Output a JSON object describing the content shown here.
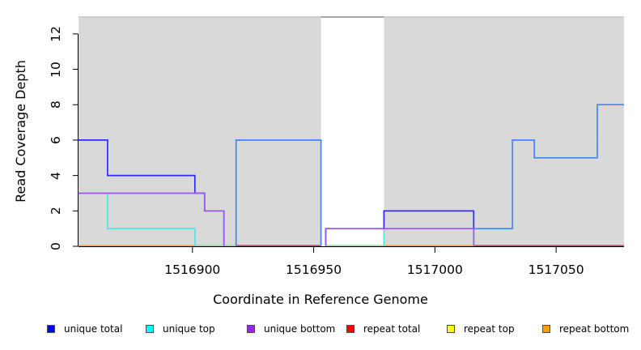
{
  "figure": {
    "x_axis_title": "Coordinate in Reference Genome",
    "y_axis_title": "Read Coverage Depth"
  },
  "chart_data": {
    "type": "line",
    "subtype": "step-coverage-plot",
    "title": "",
    "xlabel": "Coordinate in Reference Genome",
    "ylabel": "Read Coverage Depth",
    "xlim": [
      1516853,
      1517078
    ],
    "ylim": [
      0,
      13
    ],
    "xticks": [
      1516900,
      1516950,
      1517000,
      1517050
    ],
    "yticks": [
      0,
      2,
      4,
      6,
      8,
      10,
      12
    ],
    "grid": false,
    "plot_background": "#d9d9d9",
    "figure_background": "#ffffff",
    "axis_color": "#000000",
    "top_boundary_line_color": "#c8c8c8",
    "gap_region": {
      "x_start": 1516953,
      "x_end": 1516979,
      "fill": "#ffffff",
      "top_line_color": "#8d8d8d"
    },
    "legend_position": "bottom",
    "legend": [
      {
        "label": "unique total",
        "color": "#0000ff"
      },
      {
        "label": "unique top",
        "color": "#00ffff"
      },
      {
        "label": "unique bottom",
        "color": "#a020f0"
      },
      {
        "label": "repeat total",
        "color": "#ff0000"
      },
      {
        "label": "repeat top",
        "color": "#ffff00"
      },
      {
        "label": "repeat bottom",
        "color": "#ff9d00"
      }
    ],
    "series": [
      {
        "name": "repeat bottom",
        "color": "#ff9e21",
        "segments": [
          [
            [
              1516853,
              0
            ],
            [
              1516901,
              0
            ]
          ],
          [
            [
              1516979,
              0
            ],
            [
              1517016,
              0
            ]
          ]
        ]
      },
      {
        "name": "zero-coverage green line (unlabeled)",
        "color": "#8fd6a0",
        "segments": [
          [
            [
              1516901,
              0
            ],
            [
              1516918,
              0
            ]
          ],
          [
            [
              1516955,
              0
            ],
            [
              1516979,
              0
            ]
          ]
        ]
      },
      {
        "name": "repeat total",
        "color": "#c9406b",
        "segments": [
          [
            [
              1516918,
              0
            ],
            [
              1516953,
              0
            ]
          ],
          [
            [
              1517016,
              0
            ],
            [
              1517078,
              0
            ]
          ]
        ]
      },
      {
        "name": "unique top",
        "color": "#5fdde4",
        "segments": [
          [
            [
              1516853,
              3
            ],
            [
              1516865,
              3
            ],
            [
              1516865,
              1
            ],
            [
              1516901,
              1
            ],
            [
              1516901,
              0
            ]
          ],
          [
            [
              1516979,
              0
            ],
            [
              1516979,
              1
            ],
            [
              1517016,
              1
            ],
            [
              1517016,
              0
            ]
          ]
        ]
      },
      {
        "name": "unique total",
        "color": "#2b2bff",
        "segments": [
          [
            [
              1516853,
              6
            ],
            [
              1516865,
              6
            ],
            [
              1516865,
              4
            ],
            [
              1516901,
              4
            ],
            [
              1516901,
              3
            ],
            [
              1516905,
              3
            ],
            [
              1516905,
              2
            ],
            [
              1516913,
              2
            ],
            [
              1516913,
              0
            ]
          ],
          [
            [
              1516955,
              0
            ],
            [
              1516955,
              1
            ],
            [
              1516979,
              1
            ],
            [
              1516979,
              2
            ],
            [
              1517016,
              2
            ],
            [
              1517016,
              1
            ]
          ]
        ]
      },
      {
        "name": "unique bottom",
        "color": "#a058f0",
        "segments": [
          [
            [
              1516853,
              3
            ],
            [
              1516905,
              3
            ],
            [
              1516905,
              2
            ],
            [
              1516913,
              2
            ],
            [
              1516913,
              0
            ]
          ],
          [
            [
              1516955,
              0
            ],
            [
              1516955,
              1
            ],
            [
              1517016,
              1
            ],
            [
              1517016,
              0
            ]
          ]
        ]
      },
      {
        "name": "coverage step line light blue (unlabeled)",
        "color": "#4285f4",
        "segments": [
          [
            [
              1516918,
              0
            ],
            [
              1516918,
              6
            ],
            [
              1516953,
              6
            ],
            [
              1516953,
              0
            ]
          ],
          [
            [
              1517016,
              1
            ],
            [
              1517032,
              1
            ],
            [
              1517032,
              6
            ],
            [
              1517041,
              6
            ],
            [
              1517041,
              5
            ],
            [
              1517067,
              5
            ],
            [
              1517067,
              8
            ],
            [
              1517078,
              8
            ]
          ]
        ]
      }
    ]
  }
}
